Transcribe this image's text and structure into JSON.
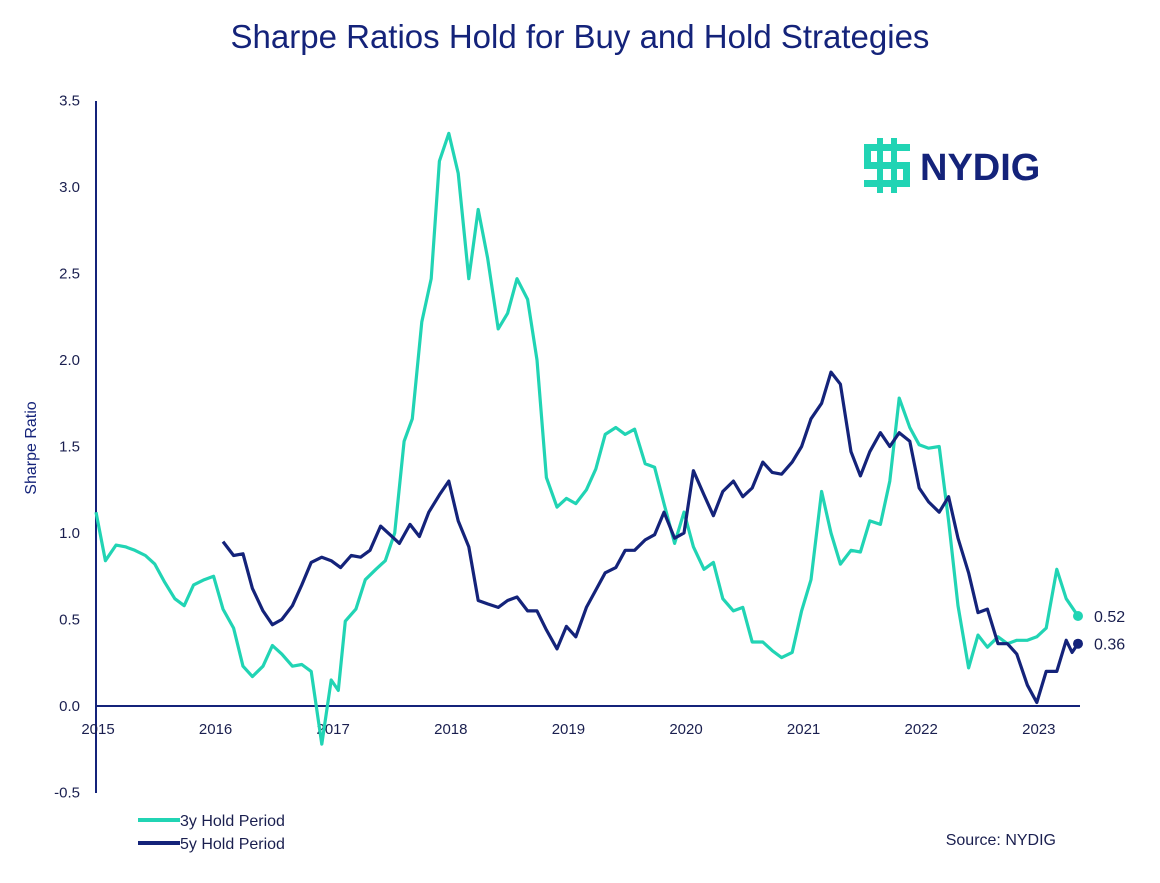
{
  "colors": {
    "series_3y": "#21d4b4",
    "series_5y": "#14237a",
    "axis": "#14237a",
    "text": "#1a1f4f"
  },
  "logo": {
    "text": "NYDIG",
    "icon": "nydig-logo-icon"
  },
  "source": "Source: NYDIG",
  "chart_data": {
    "type": "line",
    "title": "Sharpe Ratios Hold for Buy and Hold Strategies",
    "xlabel": "",
    "ylabel": "Sharpe Ratio",
    "xlim": [
      2015.0,
      2023.6
    ],
    "ylim": [
      -0.5,
      3.5
    ],
    "yticks": [
      {
        "value": 3.5,
        "label": "3.5"
      },
      {
        "value": 3.0,
        "label": "3.0"
      },
      {
        "value": 2.5,
        "label": "2.5"
      },
      {
        "value": 2.0,
        "label": "2.0"
      },
      {
        "value": 1.5,
        "label": "1.5"
      },
      {
        "value": 1.0,
        "label": "1.0"
      },
      {
        "value": 0.5,
        "label": "0.5"
      },
      {
        "value": 0.0,
        "label": "0.0"
      },
      {
        "value": -0.5,
        "label": "-0.5"
      }
    ],
    "xticks": [
      {
        "value": 2015,
        "label": "2015"
      },
      {
        "value": 2016,
        "label": "2016"
      },
      {
        "value": 2017,
        "label": "2017"
      },
      {
        "value": 2018,
        "label": "2018"
      },
      {
        "value": 2019,
        "label": "2019"
      },
      {
        "value": 2020,
        "label": "2020"
      },
      {
        "value": 2021,
        "label": "2021"
      },
      {
        "value": 2022,
        "label": "2022"
      },
      {
        "value": 2023,
        "label": "2023"
      }
    ],
    "grid": false,
    "legend_position": "bottom-left",
    "series": [
      {
        "name": "3y Hold Period",
        "end_label": "0.52",
        "points": [
          [
            2015.0,
            1.12
          ],
          [
            2015.08,
            0.84
          ],
          [
            2015.17,
            0.93
          ],
          [
            2015.25,
            0.92
          ],
          [
            2015.33,
            0.9
          ],
          [
            2015.42,
            0.87
          ],
          [
            2015.5,
            0.82
          ],
          [
            2015.58,
            0.72
          ],
          [
            2015.67,
            0.62
          ],
          [
            2015.75,
            0.58
          ],
          [
            2015.83,
            0.7
          ],
          [
            2015.92,
            0.73
          ],
          [
            2016.0,
            0.75
          ],
          [
            2016.08,
            0.56
          ],
          [
            2016.17,
            0.45
          ],
          [
            2016.25,
            0.23
          ],
          [
            2016.33,
            0.17
          ],
          [
            2016.42,
            0.23
          ],
          [
            2016.5,
            0.35
          ],
          [
            2016.58,
            0.3
          ],
          [
            2016.67,
            0.23
          ],
          [
            2016.75,
            0.24
          ],
          [
            2016.83,
            0.2
          ],
          [
            2016.92,
            -0.22
          ],
          [
            2017.0,
            0.15
          ],
          [
            2017.06,
            0.09
          ],
          [
            2017.12,
            0.49
          ],
          [
            2017.21,
            0.56
          ],
          [
            2017.29,
            0.73
          ],
          [
            2017.38,
            0.79
          ],
          [
            2017.46,
            0.84
          ],
          [
            2017.54,
            1.0
          ],
          [
            2017.62,
            1.53
          ],
          [
            2017.69,
            1.66
          ],
          [
            2017.77,
            2.22
          ],
          [
            2017.85,
            2.47
          ],
          [
            2017.92,
            3.15
          ],
          [
            2018.0,
            3.31
          ],
          [
            2018.08,
            3.08
          ],
          [
            2018.17,
            2.47
          ],
          [
            2018.25,
            2.87
          ],
          [
            2018.33,
            2.59
          ],
          [
            2018.42,
            2.18
          ],
          [
            2018.5,
            2.27
          ],
          [
            2018.58,
            2.47
          ],
          [
            2018.67,
            2.35
          ],
          [
            2018.75,
            2.0
          ],
          [
            2018.83,
            1.32
          ],
          [
            2018.92,
            1.15
          ],
          [
            2019.0,
            1.2
          ],
          [
            2019.08,
            1.17
          ],
          [
            2019.17,
            1.25
          ],
          [
            2019.25,
            1.37
          ],
          [
            2019.33,
            1.57
          ],
          [
            2019.42,
            1.61
          ],
          [
            2019.5,
            1.57
          ],
          [
            2019.58,
            1.6
          ],
          [
            2019.67,
            1.4
          ],
          [
            2019.75,
            1.38
          ],
          [
            2019.83,
            1.17
          ],
          [
            2019.92,
            0.94
          ],
          [
            2020.0,
            1.12
          ],
          [
            2020.08,
            0.92
          ],
          [
            2020.17,
            0.79
          ],
          [
            2020.25,
            0.83
          ],
          [
            2020.33,
            0.62
          ],
          [
            2020.42,
            0.55
          ],
          [
            2020.5,
            0.57
          ],
          [
            2020.58,
            0.37
          ],
          [
            2020.67,
            0.37
          ],
          [
            2020.75,
            0.32
          ],
          [
            2020.83,
            0.28
          ],
          [
            2020.92,
            0.31
          ],
          [
            2021.0,
            0.55
          ],
          [
            2021.08,
            0.73
          ],
          [
            2021.17,
            1.24
          ],
          [
            2021.25,
            1.0
          ],
          [
            2021.33,
            0.82
          ],
          [
            2021.42,
            0.9
          ],
          [
            2021.5,
            0.89
          ],
          [
            2021.58,
            1.07
          ],
          [
            2021.67,
            1.05
          ],
          [
            2021.75,
            1.3
          ],
          [
            2021.83,
            1.78
          ],
          [
            2021.92,
            1.61
          ],
          [
            2022.0,
            1.51
          ],
          [
            2022.08,
            1.49
          ],
          [
            2022.17,
            1.5
          ],
          [
            2022.25,
            1.07
          ],
          [
            2022.33,
            0.58
          ],
          [
            2022.42,
            0.22
          ],
          [
            2022.5,
            0.41
          ],
          [
            2022.58,
            0.34
          ],
          [
            2022.67,
            0.4
          ],
          [
            2022.75,
            0.36
          ],
          [
            2022.83,
            0.38
          ],
          [
            2022.92,
            0.38
          ],
          [
            2023.0,
            0.4
          ],
          [
            2023.08,
            0.45
          ],
          [
            2023.17,
            0.79
          ],
          [
            2023.25,
            0.62
          ],
          [
            2023.35,
            0.52
          ]
        ]
      },
      {
        "name": "5y Hold Period",
        "end_label": "0.36",
        "points": [
          [
            2016.08,
            0.95
          ],
          [
            2016.17,
            0.87
          ],
          [
            2016.25,
            0.88
          ],
          [
            2016.33,
            0.68
          ],
          [
            2016.42,
            0.55
          ],
          [
            2016.5,
            0.47
          ],
          [
            2016.58,
            0.5
          ],
          [
            2016.67,
            0.58
          ],
          [
            2016.75,
            0.7
          ],
          [
            2016.83,
            0.83
          ],
          [
            2016.92,
            0.86
          ],
          [
            2017.0,
            0.84
          ],
          [
            2017.08,
            0.8
          ],
          [
            2017.17,
            0.87
          ],
          [
            2017.25,
            0.86
          ],
          [
            2017.33,
            0.9
          ],
          [
            2017.42,
            1.04
          ],
          [
            2017.5,
            0.99
          ],
          [
            2017.58,
            0.94
          ],
          [
            2017.67,
            1.05
          ],
          [
            2017.75,
            0.98
          ],
          [
            2017.83,
            1.12
          ],
          [
            2017.92,
            1.22
          ],
          [
            2018.0,
            1.3
          ],
          [
            2018.08,
            1.07
          ],
          [
            2018.17,
            0.92
          ],
          [
            2018.25,
            0.61
          ],
          [
            2018.33,
            0.59
          ],
          [
            2018.42,
            0.57
          ],
          [
            2018.5,
            0.61
          ],
          [
            2018.58,
            0.63
          ],
          [
            2018.67,
            0.55
          ],
          [
            2018.75,
            0.55
          ],
          [
            2018.83,
            0.44
          ],
          [
            2018.92,
            0.33
          ],
          [
            2019.0,
            0.46
          ],
          [
            2019.08,
            0.4
          ],
          [
            2019.17,
            0.57
          ],
          [
            2019.25,
            0.67
          ],
          [
            2019.33,
            0.77
          ],
          [
            2019.42,
            0.8
          ],
          [
            2019.5,
            0.9
          ],
          [
            2019.58,
            0.9
          ],
          [
            2019.67,
            0.96
          ],
          [
            2019.75,
            0.99
          ],
          [
            2019.83,
            1.12
          ],
          [
            2019.92,
            0.97
          ],
          [
            2020.0,
            1.0
          ],
          [
            2020.08,
            1.36
          ],
          [
            2020.17,
            1.22
          ],
          [
            2020.25,
            1.1
          ],
          [
            2020.33,
            1.24
          ],
          [
            2020.42,
            1.3
          ],
          [
            2020.5,
            1.21
          ],
          [
            2020.58,
            1.26
          ],
          [
            2020.67,
            1.41
          ],
          [
            2020.75,
            1.35
          ],
          [
            2020.83,
            1.34
          ],
          [
            2020.92,
            1.41
          ],
          [
            2021.0,
            1.5
          ],
          [
            2021.08,
            1.66
          ],
          [
            2021.17,
            1.75
          ],
          [
            2021.25,
            1.93
          ],
          [
            2021.33,
            1.86
          ],
          [
            2021.42,
            1.47
          ],
          [
            2021.5,
            1.33
          ],
          [
            2021.58,
            1.47
          ],
          [
            2021.67,
            1.58
          ],
          [
            2021.75,
            1.5
          ],
          [
            2021.83,
            1.58
          ],
          [
            2021.92,
            1.53
          ],
          [
            2022.0,
            1.26
          ],
          [
            2022.08,
            1.18
          ],
          [
            2022.17,
            1.12
          ],
          [
            2022.25,
            1.21
          ],
          [
            2022.33,
            0.97
          ],
          [
            2022.42,
            0.77
          ],
          [
            2022.5,
            0.54
          ],
          [
            2022.58,
            0.56
          ],
          [
            2022.67,
            0.36
          ],
          [
            2022.75,
            0.36
          ],
          [
            2022.83,
            0.3
          ],
          [
            2022.92,
            0.12
          ],
          [
            2023.0,
            0.02
          ],
          [
            2023.08,
            0.2
          ],
          [
            2023.17,
            0.2
          ],
          [
            2023.25,
            0.38
          ],
          [
            2023.3,
            0.31
          ],
          [
            2023.35,
            0.36
          ]
        ]
      }
    ]
  }
}
